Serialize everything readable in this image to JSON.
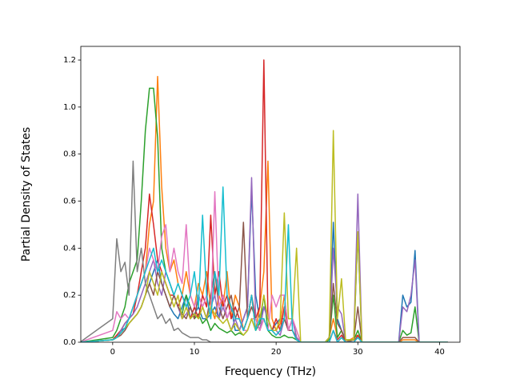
{
  "chart_data": {
    "type": "line",
    "xlabel": "Frequency (THz)",
    "ylabel": "Partial Density of States",
    "xlim": [
      -3.9,
      42.5
    ],
    "ylim": [
      0,
      1.258
    ],
    "xticks": [
      0,
      10,
      20,
      30,
      40
    ],
    "yticks": [
      {
        "value": 0,
        "label": "0.0"
      },
      0.2,
      0.4,
      0.6,
      0.8,
      {
        "value": 1,
        "label": "1.0"
      },
      1.2
    ],
    "grid": false,
    "x": [
      -4,
      0,
      0.5,
      1,
      1.5,
      2,
      2.5,
      3,
      3.5,
      4,
      4.5,
      5,
      5.5,
      6,
      6.5,
      7,
      7.5,
      8,
      8.5,
      9,
      9.5,
      10,
      10.5,
      11,
      11.5,
      12,
      12.5,
      13,
      13.5,
      14,
      14.5,
      15,
      15.5,
      16,
      16.5,
      17,
      17.5,
      18,
      18.5,
      19,
      19.5,
      20,
      20.5,
      21,
      21.5,
      22,
      22.5,
      23,
      26,
      26.5,
      27,
      27.5,
      28,
      28.5,
      29.5,
      30,
      30.5,
      35,
      35.5,
      36,
      36.5,
      37,
      37.5,
      41
    ],
    "series": [
      {
        "color": "#1f77b4",
        "values": [
          0,
          0.01,
          0.03,
          0.05,
          0.06,
          0.08,
          0.1,
          0.12,
          0.15,
          0.2,
          0.25,
          0.3,
          0.35,
          0.25,
          0.2,
          0.15,
          0.12,
          0.1,
          0.15,
          0.2,
          0.1,
          0.12,
          0.15,
          0.1,
          0.1,
          0.12,
          0.15,
          0.1,
          0.2,
          0.1,
          0.15,
          0.05,
          0.05,
          0.1,
          0.15,
          0.65,
          0.2,
          0.1,
          0.15,
          0.1,
          0.05,
          0.08,
          0.1,
          0.1,
          0.05,
          0.1,
          0.02,
          0,
          0,
          0.02,
          0.51,
          0.1,
          0.05,
          0,
          0.01,
          0.46,
          0,
          0,
          0.2,
          0.15,
          0.17,
          0.39,
          0,
          0
        ]
      },
      {
        "color": "#ff7f0e",
        "values": [
          0,
          0.01,
          0.03,
          0.05,
          0.08,
          0.1,
          0.15,
          0.2,
          0.25,
          0.3,
          0.5,
          0.6,
          1.13,
          0.66,
          0.4,
          0.3,
          0.35,
          0.25,
          0.2,
          0.3,
          0.2,
          0.15,
          0.25,
          0.2,
          0.3,
          0.15,
          0.1,
          0.2,
          0.15,
          0.3,
          0.1,
          0.2,
          0.15,
          0.05,
          0.1,
          0.2,
          0.05,
          0.15,
          0.3,
          0.77,
          0.1,
          0.05,
          0.08,
          0.2,
          0.05,
          0.1,
          0.05,
          0,
          0,
          0.02,
          0.1,
          0.02,
          0.05,
          0,
          0.02,
          0.03,
          0,
          0,
          0.01,
          0.01,
          0.01,
          0.01,
          0,
          0
        ]
      },
      {
        "color": "#2ca02c",
        "values": [
          0,
          0.02,
          0.05,
          0.1,
          0.15,
          0.25,
          0.3,
          0.35,
          0.6,
          0.9,
          1.08,
          1.08,
          0.87,
          0.4,
          0.3,
          0.25,
          0.2,
          0.15,
          0.12,
          0.2,
          0.15,
          0.1,
          0.12,
          0.08,
          0.1,
          0.05,
          0.08,
          0.06,
          0.05,
          0.04,
          0.05,
          0.03,
          0.04,
          0.03,
          0.05,
          0.1,
          0.05,
          0.08,
          0.2,
          0.05,
          0.03,
          0.02,
          0.02,
          0.03,
          0.02,
          0.02,
          0.01,
          0,
          0,
          0.01,
          0.2,
          0.02,
          0.05,
          0.01,
          0.01,
          0.05,
          0,
          0,
          0.05,
          0.03,
          0.04,
          0.15,
          0,
          0
        ]
      },
      {
        "color": "#d62728",
        "values": [
          0,
          0.01,
          0.03,
          0.05,
          0.08,
          0.1,
          0.12,
          0.2,
          0.3,
          0.4,
          0.63,
          0.5,
          0.35,
          0.3,
          0.25,
          0.2,
          0.2,
          0.15,
          0.2,
          0.15,
          0.1,
          0.15,
          0.1,
          0.2,
          0.15,
          0.54,
          0.2,
          0.3,
          0.15,
          0.2,
          0.1,
          0.15,
          0.1,
          0.05,
          0.1,
          0.2,
          0.1,
          0.15,
          1.2,
          0.1,
          0.05,
          0.1,
          0.05,
          0.15,
          0.05,
          0.05,
          0.02,
          0,
          0,
          0,
          0.05,
          0.01,
          0.03,
          0,
          0,
          0.03,
          0,
          0,
          0,
          0,
          0,
          0,
          0,
          0
        ]
      },
      {
        "color": "#9467bd",
        "values": [
          0,
          0.01,
          0.02,
          0.05,
          0.08,
          0.1,
          0.12,
          0.15,
          0.2,
          0.25,
          0.3,
          0.35,
          0.25,
          0.2,
          0.3,
          0.25,
          0.2,
          0.15,
          0.1,
          0.12,
          0.15,
          0.1,
          0.2,
          0.15,
          0.1,
          0.15,
          0.2,
          0.1,
          0.15,
          0.1,
          0.05,
          0.1,
          0.05,
          0.1,
          0.15,
          0.7,
          0.1,
          0.05,
          0.15,
          0.1,
          0.05,
          0.05,
          0.03,
          0.1,
          0.05,
          0.1,
          0.02,
          0,
          0,
          0.02,
          0.4,
          0.15,
          0.12,
          0,
          0.01,
          0.63,
          0,
          0,
          0.15,
          0.13,
          0.2,
          0.35,
          0,
          0
        ]
      },
      {
        "color": "#8c564b",
        "values": [
          0,
          0.01,
          0.02,
          0.03,
          0.05,
          0.08,
          0.1,
          0.12,
          0.15,
          0.2,
          0.25,
          0.2,
          0.3,
          0.25,
          0.2,
          0.15,
          0.2,
          0.15,
          0.12,
          0.1,
          0.15,
          0.1,
          0.2,
          0.15,
          0.1,
          0.2,
          0.3,
          0.15,
          0.1,
          0.15,
          0.2,
          0.1,
          0.15,
          0.51,
          0.1,
          0.15,
          0.1,
          0.05,
          0.1,
          0.05,
          0.05,
          0.03,
          0.05,
          0.1,
          0.05,
          0.05,
          0.01,
          0,
          0,
          0.02,
          0.25,
          0.08,
          0.05,
          0,
          0.01,
          0.15,
          0,
          0,
          0.02,
          0.02,
          0.02,
          0.02,
          0,
          0
        ]
      },
      {
        "color": "#e377c2",
        "values": [
          0,
          0.05,
          0.13,
          0.1,
          0.12,
          0.1,
          0.15,
          0.2,
          0.25,
          0.3,
          0.4,
          0.35,
          0.3,
          0.45,
          0.5,
          0.3,
          0.4,
          0.3,
          0.25,
          0.5,
          0.2,
          0.15,
          0.2,
          0.15,
          0.2,
          0.1,
          0.64,
          0.15,
          0.2,
          0.1,
          0.15,
          0.1,
          0.1,
          0.05,
          0.05,
          0.1,
          0.1,
          0.05,
          0.1,
          0.05,
          0.2,
          0.15,
          0.2,
          0.2,
          0.05,
          0.1,
          0.05,
          0,
          0,
          0,
          0.05,
          0,
          0.02,
          0,
          0,
          0.02,
          0,
          0,
          0,
          0,
          0,
          0,
          0,
          0
        ]
      },
      {
        "color": "#7f7f7f",
        "values": [
          0,
          0.1,
          0.44,
          0.3,
          0.34,
          0.2,
          0.77,
          0.3,
          0.4,
          0.25,
          0.2,
          0.15,
          0.1,
          0.12,
          0.08,
          0.1,
          0.05,
          0.06,
          0.04,
          0.03,
          0.02,
          0.02,
          0.02,
          0.01,
          0.01,
          0,
          0,
          0,
          0,
          0,
          0,
          0,
          0,
          0,
          0,
          0,
          0,
          0,
          0,
          0,
          0,
          0,
          0,
          0,
          0,
          0,
          0,
          0,
          0,
          0,
          0,
          0,
          0,
          0,
          0,
          0,
          0,
          0,
          0,
          0,
          0,
          0,
          0,
          0
        ]
      },
      {
        "color": "#bcbd22",
        "values": [
          0,
          0.01,
          0.02,
          0.04,
          0.06,
          0.08,
          0.1,
          0.12,
          0.15,
          0.2,
          0.3,
          0.25,
          0.2,
          0.3,
          0.25,
          0.2,
          0.15,
          0.2,
          0.1,
          0.15,
          0.1,
          0.12,
          0.1,
          0.15,
          0.1,
          0.15,
          0.12,
          0.1,
          0.08,
          0.1,
          0.05,
          0.08,
          0.05,
          0.03,
          0.05,
          0.1,
          0.05,
          0.1,
          0.2,
          0.1,
          0.05,
          0.05,
          0.1,
          0.55,
          0.1,
          0.1,
          0.4,
          0,
          0,
          0.02,
          0.9,
          0.1,
          0.27,
          0.01,
          0.01,
          0.47,
          0,
          0,
          0,
          0,
          0,
          0,
          0,
          0
        ]
      },
      {
        "color": "#17becf",
        "values": [
          0,
          0.01,
          0.02,
          0.04,
          0.06,
          0.1,
          0.15,
          0.2,
          0.25,
          0.3,
          0.35,
          0.4,
          0.3,
          0.35,
          0.3,
          0.25,
          0.2,
          0.25,
          0.2,
          0.15,
          0.2,
          0.3,
          0.15,
          0.54,
          0.2,
          0.1,
          0.3,
          0.2,
          0.66,
          0.2,
          0.15,
          0.1,
          0.1,
          0.05,
          0.1,
          0.2,
          0.05,
          0.1,
          0.1,
          0.05,
          0.05,
          0.03,
          0.05,
          0.1,
          0.5,
          0.05,
          0.01,
          0,
          0,
          0,
          0.05,
          0,
          0.02,
          0,
          0,
          0.02,
          0,
          0,
          0,
          0,
          0,
          0,
          0,
          0
        ]
      }
    ]
  }
}
